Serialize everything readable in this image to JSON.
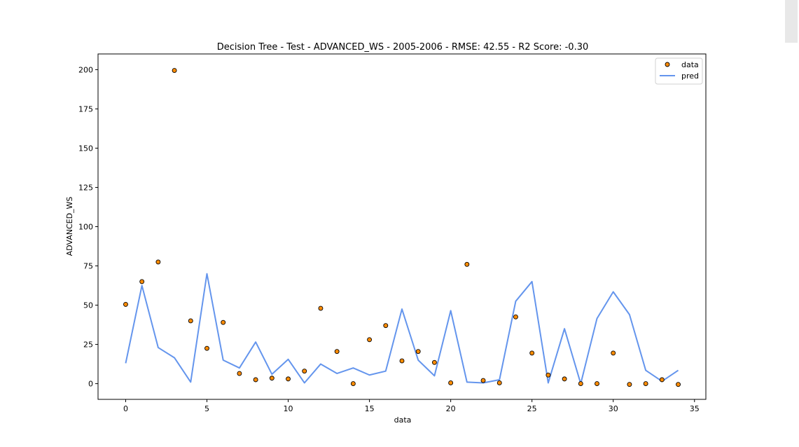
{
  "chart_data": {
    "type": "scatter",
    "title": "Decision Tree - Test - ADVANCED_WS - 2005-2006 - RMSE: 42.55 - R2 Score: -0.30",
    "xlabel": "data",
    "ylabel": "ADVANCED_WS",
    "xlim": [
      -1.7,
      35.7
    ],
    "ylim": [
      -10,
      210
    ],
    "xticks": [
      0,
      5,
      10,
      15,
      20,
      25,
      30,
      35
    ],
    "yticks": [
      0,
      25,
      50,
      75,
      100,
      125,
      150,
      175,
      200
    ],
    "legend_position": "top-right",
    "grid": false,
    "series": [
      {
        "name": "data",
        "kind": "scatter",
        "color": "#ff8c00",
        "edgecolor": "#000000",
        "x": [
          0,
          1,
          2,
          3,
          4,
          5,
          6,
          7,
          8,
          9,
          10,
          11,
          12,
          13,
          14,
          15,
          16,
          17,
          18,
          19,
          20,
          21,
          22,
          23,
          24,
          25,
          26,
          27,
          28,
          29,
          30,
          31,
          32,
          33,
          34
        ],
        "values": [
          50.5,
          65,
          77.5,
          199.5,
          40,
          22.5,
          39,
          6.5,
          2.5,
          3.5,
          3,
          8,
          48,
          20.5,
          0,
          28,
          37,
          14.5,
          20.5,
          13.5,
          0.5,
          76,
          2,
          0.5,
          42.5,
          19.5,
          5.5,
          3,
          0,
          0,
          19.5,
          -0.5,
          0,
          2.5,
          -0.5
        ]
      },
      {
        "name": "pred",
        "kind": "line",
        "color": "#6495ed",
        "x": [
          0,
          1,
          2,
          3,
          4,
          5,
          6,
          7,
          8,
          9,
          10,
          11,
          12,
          13,
          14,
          15,
          16,
          17,
          18,
          19,
          20,
          21,
          22,
          23,
          24,
          25,
          26,
          27,
          28,
          29,
          30,
          31,
          32,
          33,
          34
        ],
        "values": [
          13,
          62.5,
          23,
          16.5,
          1,
          70,
          15,
          10,
          26.5,
          6,
          15.5,
          0.5,
          12.5,
          6.5,
          10,
          5.5,
          8,
          47.5,
          15,
          5,
          46.5,
          1,
          0.5,
          2.5,
          52.5,
          65,
          0.5,
          35,
          0,
          41.5,
          58.5,
          44,
          8.5,
          1.5,
          8.5
        ]
      }
    ]
  }
}
